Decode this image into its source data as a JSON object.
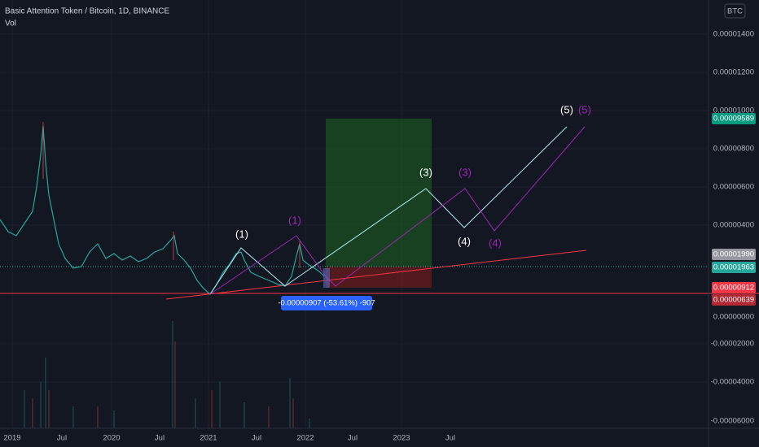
{
  "header": {
    "symbol": "Basic Attention Token / Bitcoin, 1D, BINANCE",
    "indicator": "Vol",
    "currency": "BTC"
  },
  "price_axis": [
    "0.00001400",
    "0.00001200",
    "0.00001000",
    "0.00000800",
    "0.00000600",
    "0.00000400",
    "0.00000000",
    "-0.00002000",
    "-0.00004000",
    "-0.00006000"
  ],
  "price_badges": [
    "0.00009589",
    "0.00001990",
    "0.00001963",
    "0.00000912",
    "0.00000639"
  ],
  "time_axis": [
    "2019",
    "Jul",
    "2020",
    "Jul",
    "2021",
    "Jul",
    "2022",
    "Jul",
    "2023",
    "Jul"
  ],
  "wave_labels": [
    "(1)",
    "(1)",
    "(3)",
    "(3)",
    "(4)",
    "(4)",
    "(5)",
    "(5)"
  ],
  "measure": "-0.00000907 (-53.61%) -907"
}
